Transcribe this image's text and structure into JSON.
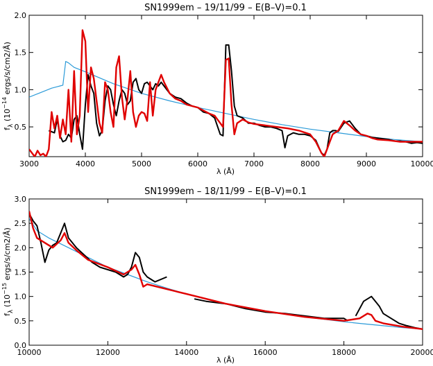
{
  "chart_data": [
    {
      "type": "line",
      "title": "SN1999em  –  19/11/99  –  E(B–V)=0.1",
      "xlabel": "λ (Å)",
      "ylabel": "fλ (10⁻¹⁴ ergs/s/cm2/Å)",
      "ylabel_main": "f",
      "ylabel_sub": "λ",
      "ylabel_unit_pre": " (10",
      "ylabel_exp": "−14",
      "ylabel_unit_post": " ergs/s/cm2/Å)",
      "xlim": [
        3000,
        10000
      ],
      "ylim": [
        0.1,
        2.0
      ],
      "xticks": [
        3000,
        4000,
        5000,
        6000,
        7000,
        8000,
        9000,
        10000
      ],
      "xtick_labels": [
        "3000",
        "4000",
        "5000",
        "6000",
        "7000",
        "8000",
        "9000",
        "10000"
      ],
      "yticks": [
        0.5,
        1.0,
        1.5,
        2.0
      ],
      "ytick_labels": [
        "0.5",
        "1.0",
        "1.5",
        "2.0"
      ],
      "series": [
        {
          "color": "#000000",
          "x": [
            3350,
            3450,
            3500,
            3550,
            3600,
            3650,
            3700,
            3750,
            3800,
            3850,
            3900,
            3950,
            4000,
            4050,
            4100,
            4150,
            4200,
            4250,
            4300,
            4350,
            4400,
            4450,
            4500,
            4550,
            4600,
            4650,
            4700,
            4750,
            4800,
            4850,
            4900,
            4950,
            5000,
            5050,
            5100,
            5150,
            5200,
            5250,
            5300,
            5350,
            5400,
            5500,
            5600,
            5700,
            5800,
            5900,
            6000,
            6100,
            6200,
            6300,
            6400,
            6450,
            6500,
            6550,
            6600,
            6650,
            6700,
            6800,
            6900,
            7000,
            7100,
            7200,
            7300,
            7400,
            7500,
            7550,
            7600,
            7650,
            7700,
            7800,
            7900,
            8000,
            8100,
            8200,
            8250,
            8300,
            8350,
            8400,
            8450,
            8500,
            8600,
            8700,
            8800,
            8900,
            9000,
            9100,
            9200,
            9300,
            9400,
            9500,
            9600,
            9700,
            9800,
            9900,
            10000
          ],
          "y": [
            0.45,
            0.42,
            0.6,
            0.38,
            0.3,
            0.32,
            0.4,
            0.35,
            0.6,
            0.65,
            0.4,
            0.2,
            0.8,
            1.2,
            1.05,
            0.95,
            0.55,
            0.38,
            0.45,
            0.85,
            1.05,
            1.0,
            0.8,
            0.65,
            0.85,
            1.0,
            0.95,
            0.8,
            0.85,
            1.1,
            1.15,
            1.0,
            0.95,
            1.08,
            1.1,
            1.05,
            1.0,
            1.08,
            1.05,
            1.1,
            1.05,
            0.95,
            0.9,
            0.88,
            0.82,
            0.78,
            0.76,
            0.7,
            0.68,
            0.62,
            0.4,
            0.38,
            1.6,
            1.6,
            1.25,
            0.78,
            0.65,
            0.62,
            0.55,
            0.55,
            0.52,
            0.5,
            0.5,
            0.48,
            0.45,
            0.22,
            0.38,
            0.4,
            0.42,
            0.4,
            0.4,
            0.38,
            0.32,
            0.15,
            0.12,
            0.2,
            0.42,
            0.45,
            0.45,
            0.44,
            0.55,
            0.58,
            0.48,
            0.4,
            0.38,
            0.36,
            0.35,
            0.34,
            0.33,
            0.31,
            0.31,
            0.3,
            0.28,
            0.29,
            0.28
          ]
        },
        {
          "color": "#e00000",
          "x": [
            3000,
            3050,
            3100,
            3150,
            3200,
            3250,
            3300,
            3350,
            3400,
            3450,
            3500,
            3550,
            3600,
            3650,
            3700,
            3750,
            3800,
            3850,
            3900,
            3950,
            4000,
            4050,
            4100,
            4150,
            4200,
            4250,
            4300,
            4350,
            4400,
            4450,
            4500,
            4550,
            4600,
            4650,
            4700,
            4750,
            4800,
            4850,
            4900,
            4950,
            5000,
            5050,
            5100,
            5150,
            5200,
            5250,
            5300,
            5350,
            5400,
            5500,
            5600,
            5700,
            5800,
            5900,
            6000,
            6100,
            6200,
            6300,
            6400,
            6450,
            6500,
            6550,
            6600,
            6650,
            6700,
            6800,
            6900,
            7000,
            7200,
            7400,
            7600,
            7800,
            8000,
            8100,
            8200,
            8250,
            8300,
            8350,
            8400,
            8500,
            8600,
            8700,
            8800,
            8900,
            9000,
            9100,
            9200,
            9400,
            9600,
            9800,
            10000
          ],
          "y": [
            0.2,
            0.15,
            0.1,
            0.18,
            0.12,
            0.14,
            0.1,
            0.2,
            0.7,
            0.48,
            0.65,
            0.35,
            0.6,
            0.4,
            1.0,
            0.3,
            1.25,
            0.4,
            0.65,
            1.8,
            1.65,
            0.7,
            1.3,
            1.15,
            0.85,
            0.55,
            0.42,
            1.1,
            1.0,
            0.7,
            0.5,
            1.3,
            1.45,
            0.9,
            0.6,
            0.88,
            1.25,
            0.7,
            0.5,
            0.65,
            0.7,
            0.68,
            0.58,
            1.1,
            0.65,
            1.0,
            1.1,
            1.2,
            1.1,
            0.95,
            0.88,
            0.85,
            0.8,
            0.78,
            0.76,
            0.72,
            0.68,
            0.65,
            0.55,
            0.5,
            1.4,
            1.42,
            0.8,
            0.4,
            0.55,
            0.6,
            0.56,
            0.54,
            0.52,
            0.5,
            0.48,
            0.45,
            0.4,
            0.3,
            0.15,
            0.1,
            0.2,
            0.3,
            0.4,
            0.45,
            0.58,
            0.52,
            0.45,
            0.4,
            0.38,
            0.35,
            0.33,
            0.32,
            0.3,
            0.3,
            0.3
          ]
        },
        {
          "color": "#2a9ad8",
          "x": [
            3000,
            3200,
            3400,
            3500,
            3550,
            3600,
            3650,
            3700,
            3800,
            4000,
            4500,
            5000,
            5500,
            6000,
            6500,
            7000,
            7500,
            8000,
            8500,
            9000,
            9500,
            10000
          ],
          "y": [
            0.9,
            0.96,
            1.02,
            1.04,
            1.05,
            1.06,
            1.38,
            1.36,
            1.3,
            1.24,
            1.08,
            0.95,
            0.85,
            0.76,
            0.68,
            0.6,
            0.53,
            0.47,
            0.42,
            0.37,
            0.33,
            0.3
          ]
        }
      ]
    },
    {
      "type": "line",
      "title": "SN1999em  –  18/11/99  –  E(B–V)=0.1",
      "xlabel": "λ (Å)",
      "ylabel": "fλ (10⁻¹⁵ ergs/s/cm2/Å)",
      "ylabel_main": "f",
      "ylabel_sub": "λ",
      "ylabel_unit_pre": " (10",
      "ylabel_exp": "−15",
      "ylabel_unit_post": " ergs/s/cm2/Å)",
      "xlim": [
        10000,
        20000
      ],
      "ylim": [
        0.0,
        3.0
      ],
      "xticks": [
        10000,
        12000,
        14000,
        16000,
        18000,
        20000
      ],
      "xtick_labels": [
        "10000",
        "12000",
        "14000",
        "16000",
        "18000",
        "20000"
      ],
      "yticks": [
        0.0,
        0.5,
        1.0,
        1.5,
        2.0,
        2.5,
        3.0
      ],
      "ytick_labels": [
        "0.0",
        "0.5",
        "1.0",
        "1.5",
        "2.0",
        "2.5",
        "3.0"
      ],
      "series": [
        {
          "color": "#000000",
          "x": [
            10000,
            10100,
            10200,
            10300,
            10400,
            10500,
            10600,
            10700,
            10800,
            10900,
            11000,
            11200,
            11400,
            11600,
            11800,
            12000,
            12200,
            12400,
            12500,
            12600,
            12700,
            12800,
            12900,
            13000,
            13200,
            13500,
            null,
            14200,
            14500,
            15000,
            15500,
            16000,
            16500,
            17000,
            17500,
            18000,
            18100,
            null,
            18300,
            18500,
            18600,
            18700,
            18800,
            18900,
            19000,
            19200,
            19400,
            19600,
            19800,
            20000
          ],
          "y": [
            2.7,
            2.55,
            2.45,
            2.1,
            1.7,
            1.95,
            2.05,
            2.1,
            2.3,
            2.5,
            2.2,
            2.0,
            1.85,
            1.7,
            1.6,
            1.55,
            1.5,
            1.4,
            1.45,
            1.6,
            1.9,
            1.8,
            1.5,
            1.4,
            1.3,
            1.4,
            null,
            0.95,
            0.9,
            0.85,
            0.75,
            0.68,
            0.65,
            0.6,
            0.55,
            0.55,
            0.5,
            null,
            0.6,
            0.9,
            0.95,
            1.0,
            0.9,
            0.8,
            0.65,
            0.55,
            0.45,
            0.4,
            0.36,
            0.33
          ]
        },
        {
          "color": "#e00000",
          "x": [
            10000,
            10100,
            10200,
            10400,
            10600,
            10800,
            10900,
            11000,
            11200,
            11500,
            12000,
            12400,
            12600,
            12700,
            12800,
            12900,
            13000,
            13500,
            14000,
            15000,
            16000,
            17000,
            18000,
            18400,
            18600,
            18700,
            18800,
            19000,
            19500,
            20000
          ],
          "y": [
            2.75,
            2.4,
            2.2,
            2.1,
            2.0,
            2.15,
            2.3,
            2.1,
            1.95,
            1.75,
            1.6,
            1.45,
            1.55,
            1.65,
            1.45,
            1.2,
            1.25,
            1.15,
            1.05,
            0.85,
            0.7,
            0.58,
            0.5,
            0.55,
            0.65,
            0.62,
            0.5,
            0.45,
            0.38,
            0.33
          ]
        },
        {
          "color": "#2a9ad8",
          "x": [
            10000,
            10200,
            10500,
            11000,
            11500,
            12000,
            12500,
            13000,
            13500,
            14000,
            14500,
            15000,
            15500,
            16000,
            16500,
            17000,
            17500,
            18000,
            18500,
            19000,
            19500,
            20000
          ],
          "y": [
            2.6,
            2.35,
            2.2,
            2.0,
            1.8,
            1.6,
            1.45,
            1.3,
            1.17,
            1.05,
            0.95,
            0.85,
            0.77,
            0.7,
            0.64,
            0.58,
            0.53,
            0.48,
            0.44,
            0.4,
            0.36,
            0.33
          ]
        }
      ]
    }
  ]
}
